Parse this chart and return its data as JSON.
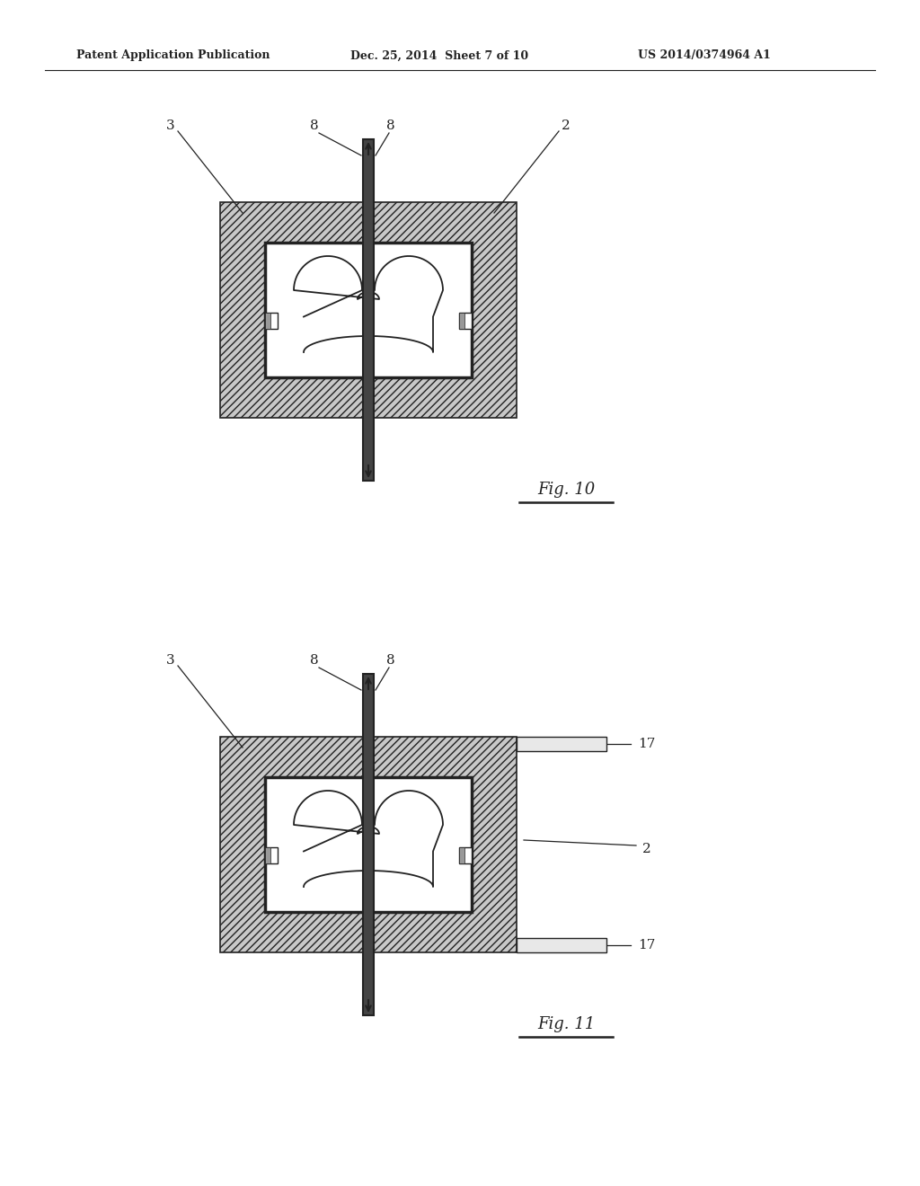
{
  "background_color": "#ffffff",
  "header_text": "Patent Application Publication",
  "header_date": "Dec. 25, 2014  Sheet 7 of 10",
  "header_patent": "US 2014/0374964 A1",
  "fig10_label": "Fig. 10",
  "fig11_label": "Fig. 11",
  "line_color": "#222222",
  "hatch_fill": "#cccccc",
  "pin_color": "#444444"
}
